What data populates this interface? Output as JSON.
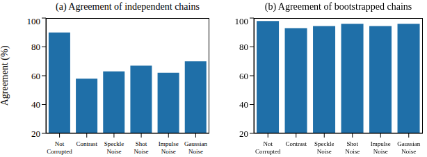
{
  "chart_data": [
    {
      "type": "bar",
      "title": "(a) Agreement of independent chains",
      "y_label": "Agreement (%)",
      "categories": [
        "Not Corrupted",
        "Contrast",
        "Speckle Noise",
        "Shot Noise",
        "Impulse Noise",
        "Gaussian Noise"
      ],
      "values": [
        90,
        58,
        63,
        67,
        62,
        70
      ],
      "color": "#1f6fa8",
      "ylim": [
        20,
        100
      ],
      "yticks": [
        20,
        40,
        60,
        80,
        100
      ]
    },
    {
      "type": "bar",
      "title": "(b) Agreement of bootstrapped chains",
      "categories": [
        "Not Corrupted",
        "Contrast",
        "Speckle Noise",
        "Shot Noise",
        "Impulse Noise",
        "Gaussian Noise"
      ],
      "values": [
        98,
        93,
        94.5,
        96,
        94.5,
        96
      ],
      "color": "#1f6fa8",
      "ylim": [
        20,
        100
      ],
      "yticks": [
        20,
        40,
        60,
        80,
        100
      ]
    }
  ]
}
